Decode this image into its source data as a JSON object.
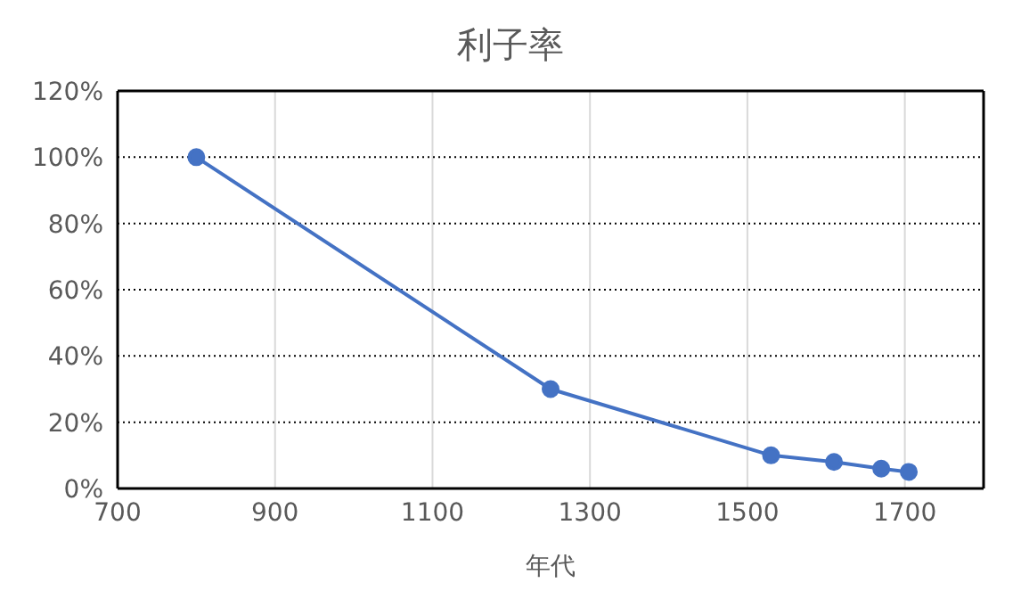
{
  "chart_data": {
    "type": "line",
    "title": "利子率",
    "xlabel": "年代",
    "x": [
      800,
      1250,
      1530,
      1610,
      1670,
      1705
    ],
    "series": [
      {
        "color": "#4472c4",
        "values": [
          100,
          30,
          10,
          8,
          6,
          5
        ]
      }
    ],
    "xlim": [
      700,
      1800
    ],
    "xticks": [
      700,
      900,
      1100,
      1300,
      1500,
      1700
    ],
    "ylim": [
      0,
      120
    ],
    "yticks": [
      {
        "value": 0,
        "label": "0%"
      },
      {
        "value": 20,
        "label": "20%"
      },
      {
        "value": 40,
        "label": "40%"
      },
      {
        "value": 60,
        "label": "60%"
      },
      {
        "value": 80,
        "label": "80%"
      },
      {
        "value": 100,
        "label": "100%"
      },
      {
        "value": 120,
        "label": "120%"
      }
    ],
    "grid": true,
    "marker": "circle",
    "line_style": "solid",
    "legend": false
  }
}
